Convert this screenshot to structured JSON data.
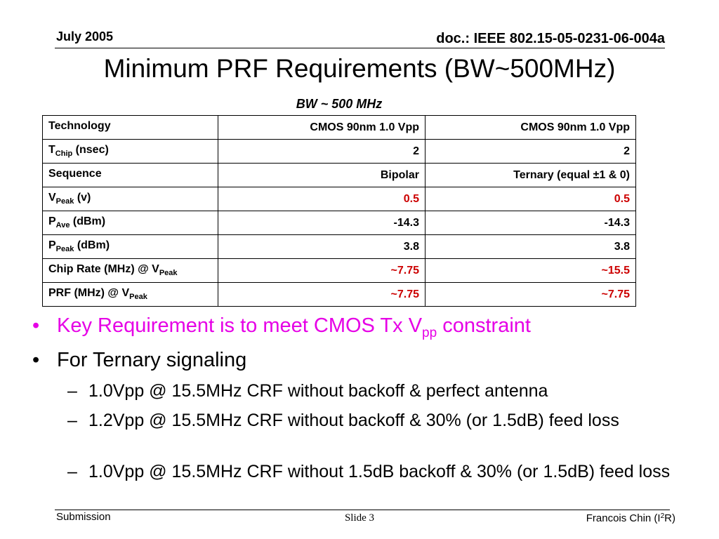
{
  "header": {
    "date": "July 2005",
    "doc_id": "doc.: IEEE 802.15-05-0231-06-004a"
  },
  "title": "Minimum PRF Requirements (BW~500MHz)",
  "subtitle": "BW ~ 500 MHz",
  "table": {
    "rows": [
      {
        "label": "Technology",
        "label_sub": "",
        "label_suffix": "",
        "v1": "CMOS 90nm 1.0 Vpp",
        "v2": "CMOS 90nm 1.0 Vpp"
      },
      {
        "label": "T",
        "label_sub": "Chip",
        "label_suffix": " (nsec)",
        "v1": "2",
        "v2": "2"
      },
      {
        "label": "Sequence",
        "label_sub": "",
        "label_suffix": "",
        "v1": "Bipolar",
        "v2": "Ternary (equal ±1 & 0)"
      },
      {
        "label": "V",
        "label_sub": "Peak",
        "label_suffix": " (v)",
        "v1": "0.5",
        "v2": "0.5"
      },
      {
        "label": "P",
        "label_sub": "Ave",
        "label_suffix": " (dBm)",
        "v1": "-14.3",
        "v2": "-14.3"
      },
      {
        "label": "P",
        "label_sub": "Peak",
        "label_suffix": " (dBm)",
        "v1": "3.8",
        "v2": "3.8"
      },
      {
        "label": "Chip Rate (MHz) @ V",
        "label_sub": "Peak",
        "label_suffix": "",
        "v1": "~7.75",
        "v2": "~15.5"
      },
      {
        "label": "PRF (MHz) @ V",
        "label_sub": "Peak",
        "label_suffix": "",
        "v1": "~7.75",
        "v2": "~7.75"
      }
    ]
  },
  "bullets": [
    {
      "text": "Key Requirement is to meet CMOS Tx V",
      "sub": "pp",
      "suffix": " constraint"
    },
    {
      "text": "For Ternary signaling"
    }
  ],
  "sub_bullets": [
    "1.0Vpp @ 15.5MHz CRF without backoff & perfect antenna",
    "1.2Vpp @ 15.5MHz CRF without backoff & 30% (or 1.5dB) feed loss",
    "1.0Vpp @ 15.5MHz CRF without 1.5dB backoff & 30% (or 1.5dB) feed loss"
  ],
  "footer": {
    "left": "Submission",
    "center": "Slide 3",
    "right_prefix": "Francois Chin (I",
    "right_sup": "2",
    "right_suffix": "R)"
  },
  "colors": {
    "highlight_red": "#cc0000",
    "bullet_magenta": "#e600e6"
  }
}
